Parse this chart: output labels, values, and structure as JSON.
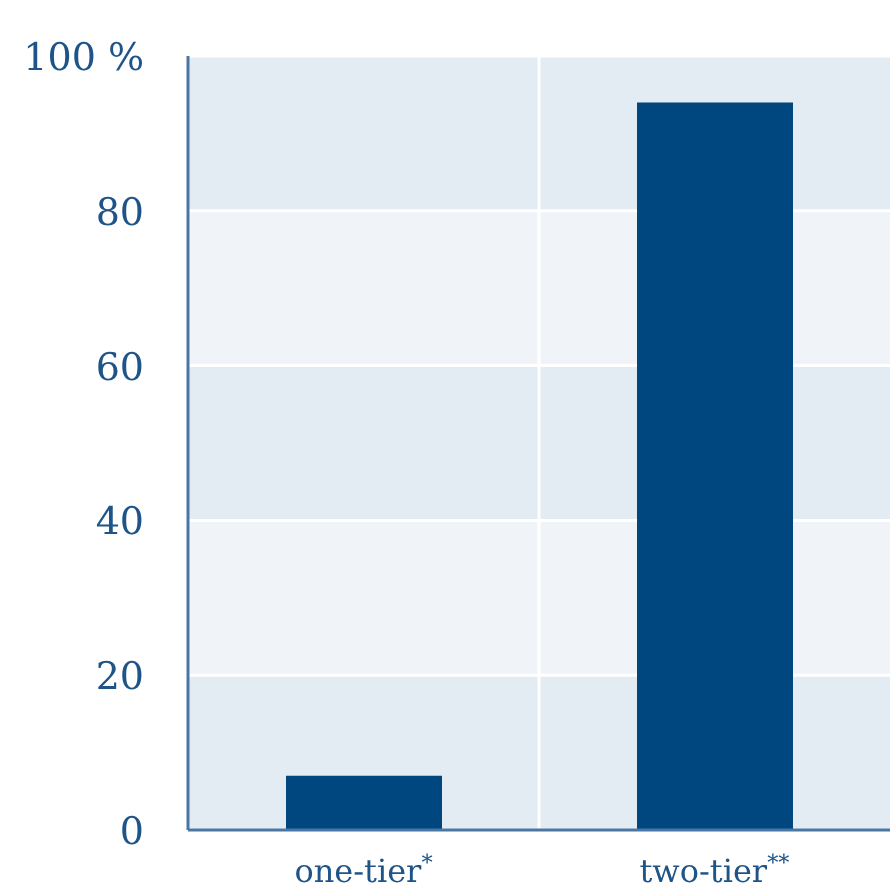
{
  "chart_data": {
    "type": "bar",
    "categories": [
      "one-tier$^{*}$",
      "two-tier$^{**}$"
    ],
    "values": [
      7,
      94
    ],
    "color": "#00467f",
    "ylim": [
      0,
      100
    ],
    "yticks": [
      0,
      20,
      40,
      60,
      80,
      {
        "value": 100,
        "label": "100 %"
      }
    ],
    "grid": true
  }
}
